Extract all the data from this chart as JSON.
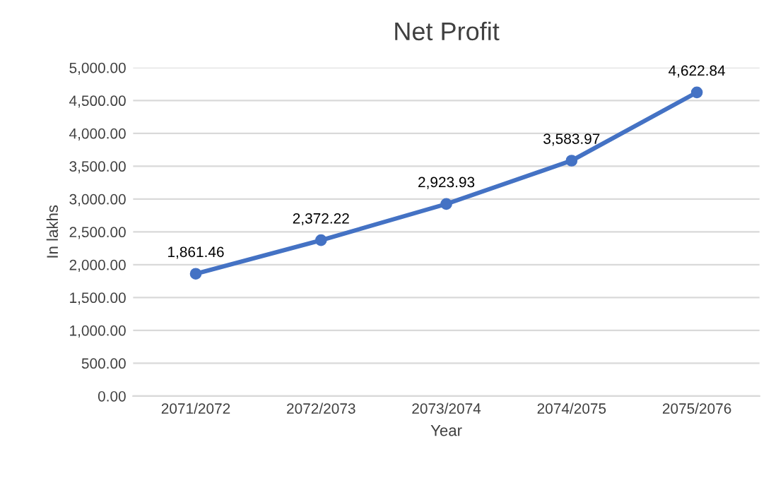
{
  "chart_data": {
    "type": "line",
    "title": "Net Profit",
    "xlabel": "Year",
    "ylabel": "In lakhs",
    "categories": [
      "2071/2072",
      "2072/2073",
      "2073/2074",
      "2074/2075",
      "2075/2076"
    ],
    "series": [
      {
        "color": "#4472c4",
        "values": [
          1861.46,
          2372.22,
          2923.93,
          3583.97,
          4622.84
        ],
        "value_labels": [
          "1,861.46",
          "2,372.22",
          "2,923.93",
          "3,583.97",
          "4,622.84"
        ]
      }
    ],
    "ylim": [
      0,
      5000
    ],
    "yticks": [
      {
        "value": 0,
        "label": "0.00"
      },
      {
        "value": 500,
        "label": "500.00"
      },
      {
        "value": 1000,
        "label": "1,000.00"
      },
      {
        "value": 1500,
        "label": "1,500.00"
      },
      {
        "value": 2000,
        "label": "2,000.00"
      },
      {
        "value": 2500,
        "label": "2,500.00"
      },
      {
        "value": 3000,
        "label": "3,000.00"
      },
      {
        "value": 3500,
        "label": "3,500.00"
      },
      {
        "value": 4000,
        "label": "4,000.00"
      },
      {
        "value": 4500,
        "label": "4,500.00"
      },
      {
        "value": 5000,
        "label": "5,000.00"
      }
    ],
    "grid": "y",
    "marker": "circle",
    "line_style": "solid"
  }
}
